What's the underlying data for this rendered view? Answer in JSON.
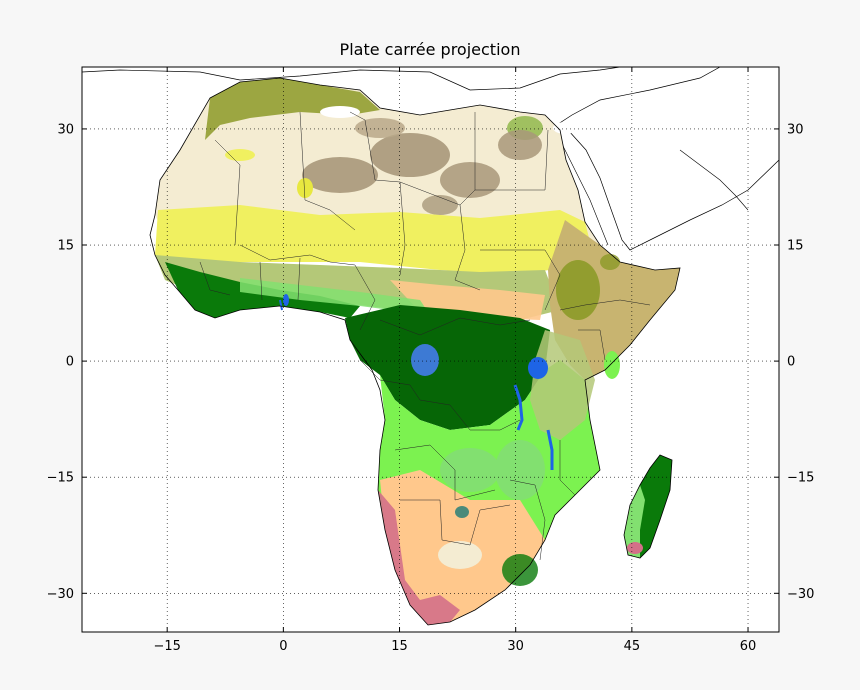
{
  "title": "Plate carrée projection",
  "map": {
    "projection": "plate carrée",
    "lon_range": [
      -26,
      64
    ],
    "lat_range": [
      -35,
      38
    ],
    "x_ticks": [
      {
        "value": -15,
        "label": "−15"
      },
      {
        "value": 0,
        "label": "0"
      },
      {
        "value": 15,
        "label": "15"
      },
      {
        "value": 30,
        "label": "30"
      },
      {
        "value": 45,
        "label": "45"
      },
      {
        "value": 60,
        "label": "60"
      }
    ],
    "y_ticks": [
      {
        "value": 30,
        "label": "30"
      },
      {
        "value": 15,
        "label": "15"
      },
      {
        "value": 0,
        "label": "0"
      },
      {
        "value": -15,
        "label": "−15"
      },
      {
        "value": -30,
        "label": "−30"
      }
    ],
    "grid": "dotted",
    "colors": {
      "background": "#f7f7f7",
      "desert": "#f4ecd2",
      "sand_brown": "#a8987a",
      "sahel_yellow": "#f0f060",
      "savanna": "#b4c878",
      "grassland": "#82e070",
      "light_green": "#7cf250",
      "forest": "#0a7a0a",
      "dark_forest": "#066606",
      "shrub_orange": "#ffc88c",
      "olive": "#8c9a28",
      "tan": "#c8b470",
      "pink": "#d47088",
      "water": "#1e64e6",
      "white": "#ffffff"
    }
  }
}
